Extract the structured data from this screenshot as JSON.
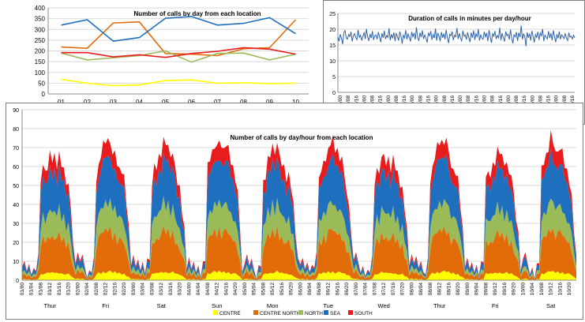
{
  "chart_data": [
    {
      "id": "calls_by_day",
      "type": "line",
      "title": "Number of calls by day from each location",
      "categories": [
        "01",
        "02",
        "03",
        "04",
        "05",
        "06",
        "07",
        "08",
        "09",
        "10"
      ],
      "ylim": [
        0,
        400
      ],
      "yticks": [
        "0",
        "50",
        "100",
        "150",
        "200",
        "250",
        "300",
        "350",
        "400"
      ],
      "series": [
        {
          "name": "CENTRE",
          "color": "#ffff00",
          "values": [
            68,
            50,
            38,
            42,
            62,
            65,
            50,
            52,
            48,
            50
          ]
        },
        {
          "name": "CENTRE NORTH",
          "color": "#e36c0a",
          "values": [
            218,
            212,
            330,
            335,
            188,
            185,
            178,
            210,
            215,
            345
          ]
        },
        {
          "name": "NORTH",
          "color": "#9bbb59",
          "values": [
            190,
            158,
            168,
            178,
            200,
            148,
            188,
            190,
            158,
            185
          ]
        },
        {
          "name": "SEA",
          "color": "#1f6fbf",
          "values": [
            320,
            345,
            245,
            262,
            352,
            360,
            320,
            328,
            355,
            280
          ]
        },
        {
          "name": "SOUTH",
          "color": "#e81c1c",
          "values": [
            192,
            192,
            172,
            182,
            170,
            188,
            198,
            215,
            208,
            185
          ]
        }
      ]
    },
    {
      "id": "duration",
      "type": "line",
      "title": "Duration of calls in minutes per day/hour",
      "ylim": [
        0,
        25
      ],
      "yticks": [
        "0",
        "5",
        "10",
        "15",
        "20",
        "25"
      ],
      "xticklabels": [
        "01/00",
        "01/08",
        "01/16",
        "02/00",
        "02/08",
        "02/16",
        "03/00",
        "03/08",
        "03/16",
        "04/00",
        "04/08",
        "04/16",
        "05/00",
        "05/08",
        "05/16",
        "06/00",
        "06/08",
        "06/16",
        "07/00",
        "07/08",
        "07/16",
        "08/00",
        "08/08",
        "08/16",
        "09/00",
        "09/08",
        "09/16",
        "10/00",
        "10/08",
        "10/16"
      ],
      "series": [
        {
          "name": "Duration",
          "color": "#2e62a8",
          "values": [
            17.5,
            16.2,
            18.4,
            17.1,
            15.3,
            18.9,
            19.6,
            17.2,
            16.8,
            18.3,
            17.7,
            19.2,
            16.1,
            17.9,
            18.6,
            17.3,
            16.7,
            19.8,
            17.4,
            18.1,
            16.4,
            17.8,
            18.9,
            16.9,
            20.1,
            17.6,
            16.3,
            18.5,
            17.2,
            19.4,
            16.6,
            17.9,
            18.2,
            16.8,
            19.1,
            17.5,
            15.9,
            18.7,
            17.3,
            19.5,
            16.9,
            18.0,
            17.4,
            20.3,
            16.5,
            18.4,
            17.1,
            19.0,
            16.2,
            18.6,
            17.7,
            16.4,
            19.3,
            17.8,
            15.4,
            18.1,
            17.2,
            19.7,
            16.8,
            18.5,
            17.3,
            16.1,
            19.2,
            17.6,
            18.8,
            16.7,
            20.6,
            17.4,
            16.3,
            18.9,
            17.5,
            19.6,
            16.9,
            18.2,
            17.1,
            15.8,
            18.7,
            17.9,
            19.4,
            16.6,
            18.3,
            17.2,
            20.2,
            16.4,
            18.8,
            17.7,
            16.2,
            19.1,
            17.3,
            18.6,
            16.8,
            19.8,
            17.4,
            15.6,
            18.4,
            17.9,
            19.3,
            16.5,
            18.1,
            17.6,
            20.4,
            16.9,
            18.7,
            17.2,
            16.3,
            19.5,
            17.8,
            18.2,
            16.7,
            19.0,
            17.4,
            15.9,
            18.9,
            17.3,
            19.6,
            16.6,
            18.5,
            17.7,
            20.0,
            16.4,
            18.3,
            17.1,
            16.8,
            19.2,
            17.6,
            18.8,
            16.2,
            19.7,
            17.5,
            15.7,
            18.6,
            17.8,
            19.4,
            16.9,
            18.0,
            17.3,
            20.5,
            16.5,
            18.7,
            17.4,
            16.1,
            19.3,
            17.9,
            18.4,
            16.7,
            19.9,
            17.2,
            15.5,
            18.2,
            17.6,
            19.1,
            16.3,
            18.9,
            17.5,
            21.1,
            16.8,
            18.5,
            17.7,
            14.6,
            19.0,
            17.3,
            18.6,
            16.4,
            19.5,
            17.8,
            15.8,
            18.3,
            17.4,
            19.2,
            16.6,
            18.8,
            17.9,
            20.1,
            16.2,
            18.1,
            17.5,
            16.9,
            19.4,
            17.2,
            18.7,
            16.5,
            19.6,
            17.6,
            15.9,
            18.4,
            17.1,
            19.3,
            16.8,
            18.2,
            17.7,
            17.0,
            18.6,
            17.3,
            16.4,
            18.9,
            17.5,
            17.8,
            16.9,
            18.1,
            17.2
          ]
        }
      ]
    },
    {
      "id": "calls_by_hour",
      "type": "area",
      "stacked": true,
      "title": "Number of calls by day/hour from each location",
      "ylim": [
        0,
        90
      ],
      "yticks": [
        "0",
        "10",
        "20",
        "30",
        "40",
        "50",
        "60",
        "70",
        "80",
        "90"
      ],
      "xticklabels": [
        "01/00",
        "01/04",
        "01/08",
        "01/12",
        "01/16",
        "01/20",
        "02/00",
        "02/04",
        "02/08",
        "02/12",
        "02/16",
        "02/20",
        "03/00",
        "03/04",
        "03/08",
        "03/12",
        "03/16",
        "03/20",
        "04/00",
        "04/04",
        "04/08",
        "04/12",
        "04/16",
        "04/20",
        "05/00",
        "05/04",
        "05/08",
        "05/12",
        "05/16",
        "05/20",
        "06/00",
        "06/04",
        "06/08",
        "06/12",
        "06/16",
        "06/20",
        "07/00",
        "07/04",
        "07/08",
        "07/12",
        "07/16",
        "07/20",
        "08/00",
        "08/04",
        "08/08",
        "08/12",
        "08/16",
        "08/20",
        "09/00",
        "09/04",
        "09/08",
        "09/12",
        "09/16",
        "09/20",
        "10/00",
        "10/04",
        "10/08",
        "10/12",
        "10/16",
        "10/20"
      ],
      "day_labels": [
        "Thur",
        "Fri",
        "Sat",
        "Sun",
        "Mon",
        "Tue",
        "Wed",
        "Thur",
        "Fri",
        "Sat"
      ],
      "day_peaks": [
        68,
        74,
        72,
        76,
        70,
        73,
        67,
        74,
        68,
        75
      ],
      "series": [
        {
          "name": "CENTRE",
          "color": "#ffff00",
          "share": 0.06
        },
        {
          "name": "CENTRE NORTH",
          "color": "#e36c0a",
          "share": 0.3
        },
        {
          "name": "NORTH",
          "color": "#9bbb59",
          "share": 0.2
        },
        {
          "name": "SEA",
          "color": "#1f6fbf",
          "share": 0.32
        },
        {
          "name": "SOUTH",
          "color": "#e81c1c",
          "share": 0.12
        }
      ]
    }
  ]
}
